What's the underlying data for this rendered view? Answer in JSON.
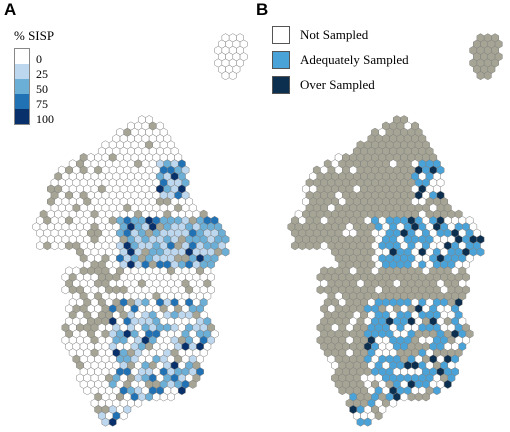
{
  "panels": {
    "a_letter": "A",
    "b_letter": "B"
  },
  "legend_a": {
    "title": "% SISP",
    "ticks": [
      "0",
      "25",
      "50",
      "75",
      "100"
    ],
    "colors": [
      "#ffffff",
      "#bdd7ee",
      "#6baed6",
      "#2171b5",
      "#08306b"
    ]
  },
  "legend_b": {
    "items": [
      {
        "label": "Not Sampled",
        "color": "#ffffff"
      },
      {
        "label": "Adequately Sampled",
        "color": "#4aa3d8"
      },
      {
        "label": "Over Sampled",
        "color": "#0c2f4f"
      }
    ]
  },
  "colors": {
    "land_unsampled": "#a6a595",
    "hex_outline": "#808080"
  }
}
